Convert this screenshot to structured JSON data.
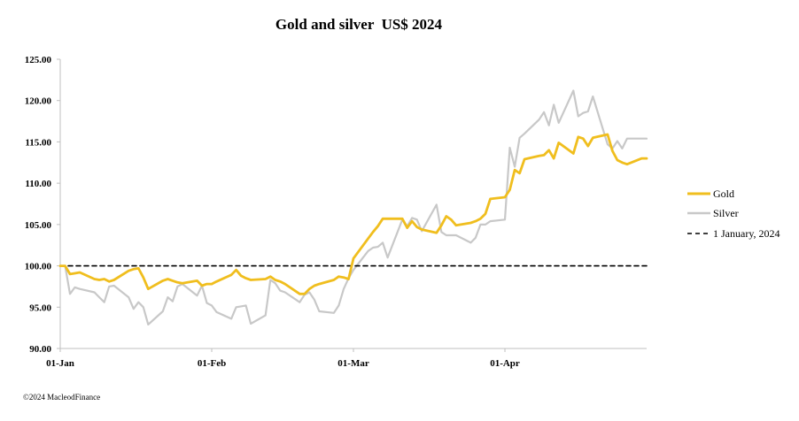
{
  "chart_data": {
    "type": "line",
    "title": "Gold and silver  US$ 2024",
    "xlabel": "",
    "ylabel": "",
    "ylim": [
      90,
      125
    ],
    "y_ticks": [
      "90.00",
      "95.00",
      "100.00",
      "105.00",
      "110.00",
      "115.00",
      "120.00",
      "125.00"
    ],
    "y_tick_values": [
      90,
      95,
      100,
      105,
      110,
      115,
      120,
      125
    ],
    "x_tick_labels": [
      "01-Jan",
      "01-Feb",
      "01-Mar",
      "01-Apr"
    ],
    "x_tick_dates": [
      "2024-01-01",
      "2024-02-01",
      "2024-03-01",
      "2024-04-01"
    ],
    "xlim": [
      "2024-01-01",
      "2024-04-30"
    ],
    "grid": false,
    "legend_position": "right",
    "colors": {
      "gold": "#F0BE1E",
      "silver": "#C8C8C8",
      "reference": "#000000"
    },
    "series": [
      {
        "name": "Gold",
        "x": [
          "2024-01-01",
          "2024-01-02",
          "2024-01-03",
          "2024-01-04",
          "2024-01-05",
          "2024-01-08",
          "2024-01-09",
          "2024-01-10",
          "2024-01-11",
          "2024-01-12",
          "2024-01-15",
          "2024-01-16",
          "2024-01-17",
          "2024-01-18",
          "2024-01-19",
          "2024-01-22",
          "2024-01-23",
          "2024-01-24",
          "2024-01-25",
          "2024-01-26",
          "2024-01-29",
          "2024-01-30",
          "2024-01-31",
          "2024-02-01",
          "2024-02-02",
          "2024-02-05",
          "2024-02-06",
          "2024-02-07",
          "2024-02-08",
          "2024-02-09",
          "2024-02-12",
          "2024-02-13",
          "2024-02-14",
          "2024-02-15",
          "2024-02-16",
          "2024-02-19",
          "2024-02-20",
          "2024-02-21",
          "2024-02-22",
          "2024-02-23",
          "2024-02-26",
          "2024-02-27",
          "2024-02-28",
          "2024-02-29",
          "2024-03-01",
          "2024-03-04",
          "2024-03-05",
          "2024-03-06",
          "2024-03-07",
          "2024-03-08",
          "2024-03-11",
          "2024-03-12",
          "2024-03-13",
          "2024-03-14",
          "2024-03-15",
          "2024-03-18",
          "2024-03-19",
          "2024-03-20",
          "2024-03-21",
          "2024-03-22",
          "2024-03-25",
          "2024-03-26",
          "2024-03-27",
          "2024-03-28",
          "2024-03-29",
          "2024-04-01",
          "2024-04-02",
          "2024-04-03",
          "2024-04-04",
          "2024-04-05",
          "2024-04-08",
          "2024-04-09",
          "2024-04-10",
          "2024-04-11",
          "2024-04-12",
          "2024-04-15",
          "2024-04-16",
          "2024-04-17",
          "2024-04-18",
          "2024-04-19",
          "2024-04-22",
          "2024-04-23",
          "2024-04-24",
          "2024-04-25",
          "2024-04-26",
          "2024-04-29",
          "2024-04-30"
        ],
        "values": [
          100.0,
          100.0,
          99.0,
          99.1,
          99.2,
          98.4,
          98.3,
          98.4,
          98.1,
          98.3,
          99.4,
          99.6,
          99.7,
          98.6,
          97.2,
          98.2,
          98.4,
          98.2,
          98.0,
          97.9,
          98.2,
          97.6,
          97.8,
          97.8,
          98.1,
          98.9,
          99.5,
          98.8,
          98.5,
          98.3,
          98.4,
          98.7,
          98.3,
          98.1,
          97.8,
          96.6,
          96.6,
          97.2,
          97.6,
          97.8,
          98.3,
          98.7,
          98.6,
          98.4,
          100.9,
          103.3,
          104.1,
          104.8,
          105.7,
          105.7,
          105.7,
          104.6,
          105.4,
          104.7,
          104.4,
          104.0,
          104.9,
          106.0,
          105.6,
          104.9,
          105.2,
          105.4,
          105.7,
          106.3,
          108.1,
          108.3,
          109.2,
          111.6,
          111.2,
          112.9,
          113.3,
          113.4,
          114.0,
          113.0,
          114.9,
          113.6,
          115.6,
          115.4,
          114.5,
          115.5,
          115.9,
          113.9,
          112.8,
          112.5,
          112.3,
          113.0,
          113.0
        ],
        "color": "#F0BE1E"
      },
      {
        "name": "Silver",
        "x": [
          "2024-01-01",
          "2024-01-02",
          "2024-01-03",
          "2024-01-04",
          "2024-01-05",
          "2024-01-08",
          "2024-01-09",
          "2024-01-10",
          "2024-01-11",
          "2024-01-12",
          "2024-01-15",
          "2024-01-16",
          "2024-01-17",
          "2024-01-18",
          "2024-01-19",
          "2024-01-22",
          "2024-01-23",
          "2024-01-24",
          "2024-01-25",
          "2024-01-26",
          "2024-01-29",
          "2024-01-30",
          "2024-01-31",
          "2024-02-01",
          "2024-02-02",
          "2024-02-05",
          "2024-02-06",
          "2024-02-07",
          "2024-02-08",
          "2024-02-09",
          "2024-02-12",
          "2024-02-13",
          "2024-02-14",
          "2024-02-15",
          "2024-02-16",
          "2024-02-19",
          "2024-02-20",
          "2024-02-21",
          "2024-02-22",
          "2024-02-23",
          "2024-02-26",
          "2024-02-27",
          "2024-02-28",
          "2024-02-29",
          "2024-03-01",
          "2024-03-04",
          "2024-03-05",
          "2024-03-06",
          "2024-03-07",
          "2024-03-08",
          "2024-03-11",
          "2024-03-12",
          "2024-03-13",
          "2024-03-14",
          "2024-03-15",
          "2024-03-18",
          "2024-03-19",
          "2024-03-20",
          "2024-03-21",
          "2024-03-22",
          "2024-03-25",
          "2024-03-26",
          "2024-03-27",
          "2024-03-28",
          "2024-03-29",
          "2024-04-01",
          "2024-04-02",
          "2024-04-03",
          "2024-04-04",
          "2024-04-05",
          "2024-04-08",
          "2024-04-09",
          "2024-04-10",
          "2024-04-11",
          "2024-04-12",
          "2024-04-15",
          "2024-04-16",
          "2024-04-17",
          "2024-04-18",
          "2024-04-19",
          "2024-04-22",
          "2024-04-23",
          "2024-04-24",
          "2024-04-25",
          "2024-04-26",
          "2024-04-29",
          "2024-04-30"
        ],
        "values": [
          100.0,
          100.0,
          96.6,
          97.4,
          97.2,
          96.8,
          96.2,
          95.6,
          97.5,
          97.6,
          96.2,
          94.8,
          95.6,
          95.0,
          92.9,
          94.5,
          96.2,
          95.7,
          97.5,
          97.8,
          96.4,
          97.6,
          95.5,
          95.2,
          94.4,
          93.6,
          95.0,
          95.1,
          95.2,
          93.0,
          94.0,
          98.3,
          97.9,
          97.0,
          96.8,
          95.6,
          96.5,
          96.8,
          95.9,
          94.5,
          94.3,
          95.2,
          97.2,
          98.5,
          99.5,
          101.8,
          102.2,
          102.3,
          102.8,
          101.0,
          105.6,
          104.8,
          105.8,
          105.6,
          104.2,
          107.4,
          104.1,
          103.7,
          103.7,
          103.7,
          102.8,
          103.4,
          105.0,
          105.0,
          105.4,
          105.6,
          114.3,
          112.0,
          115.5,
          116.0,
          117.7,
          118.6,
          117.0,
          119.5,
          117.3,
          121.2,
          118.1,
          118.5,
          118.7,
          120.5,
          114.7,
          114.2,
          115.1,
          114.2,
          115.4,
          115.4,
          115.4
        ],
        "color": "#C8C8C8"
      },
      {
        "name": "1 January, 2024",
        "x": [
          "2024-01-01",
          "2024-04-30"
        ],
        "values": [
          100.0,
          100.0
        ],
        "color": "#000000",
        "dashed": true
      }
    ],
    "legend": [
      "Gold",
      "Silver",
      "1 January, 2024"
    ]
  },
  "footer": {
    "copyright": "©2024 MacleodFinance"
  }
}
